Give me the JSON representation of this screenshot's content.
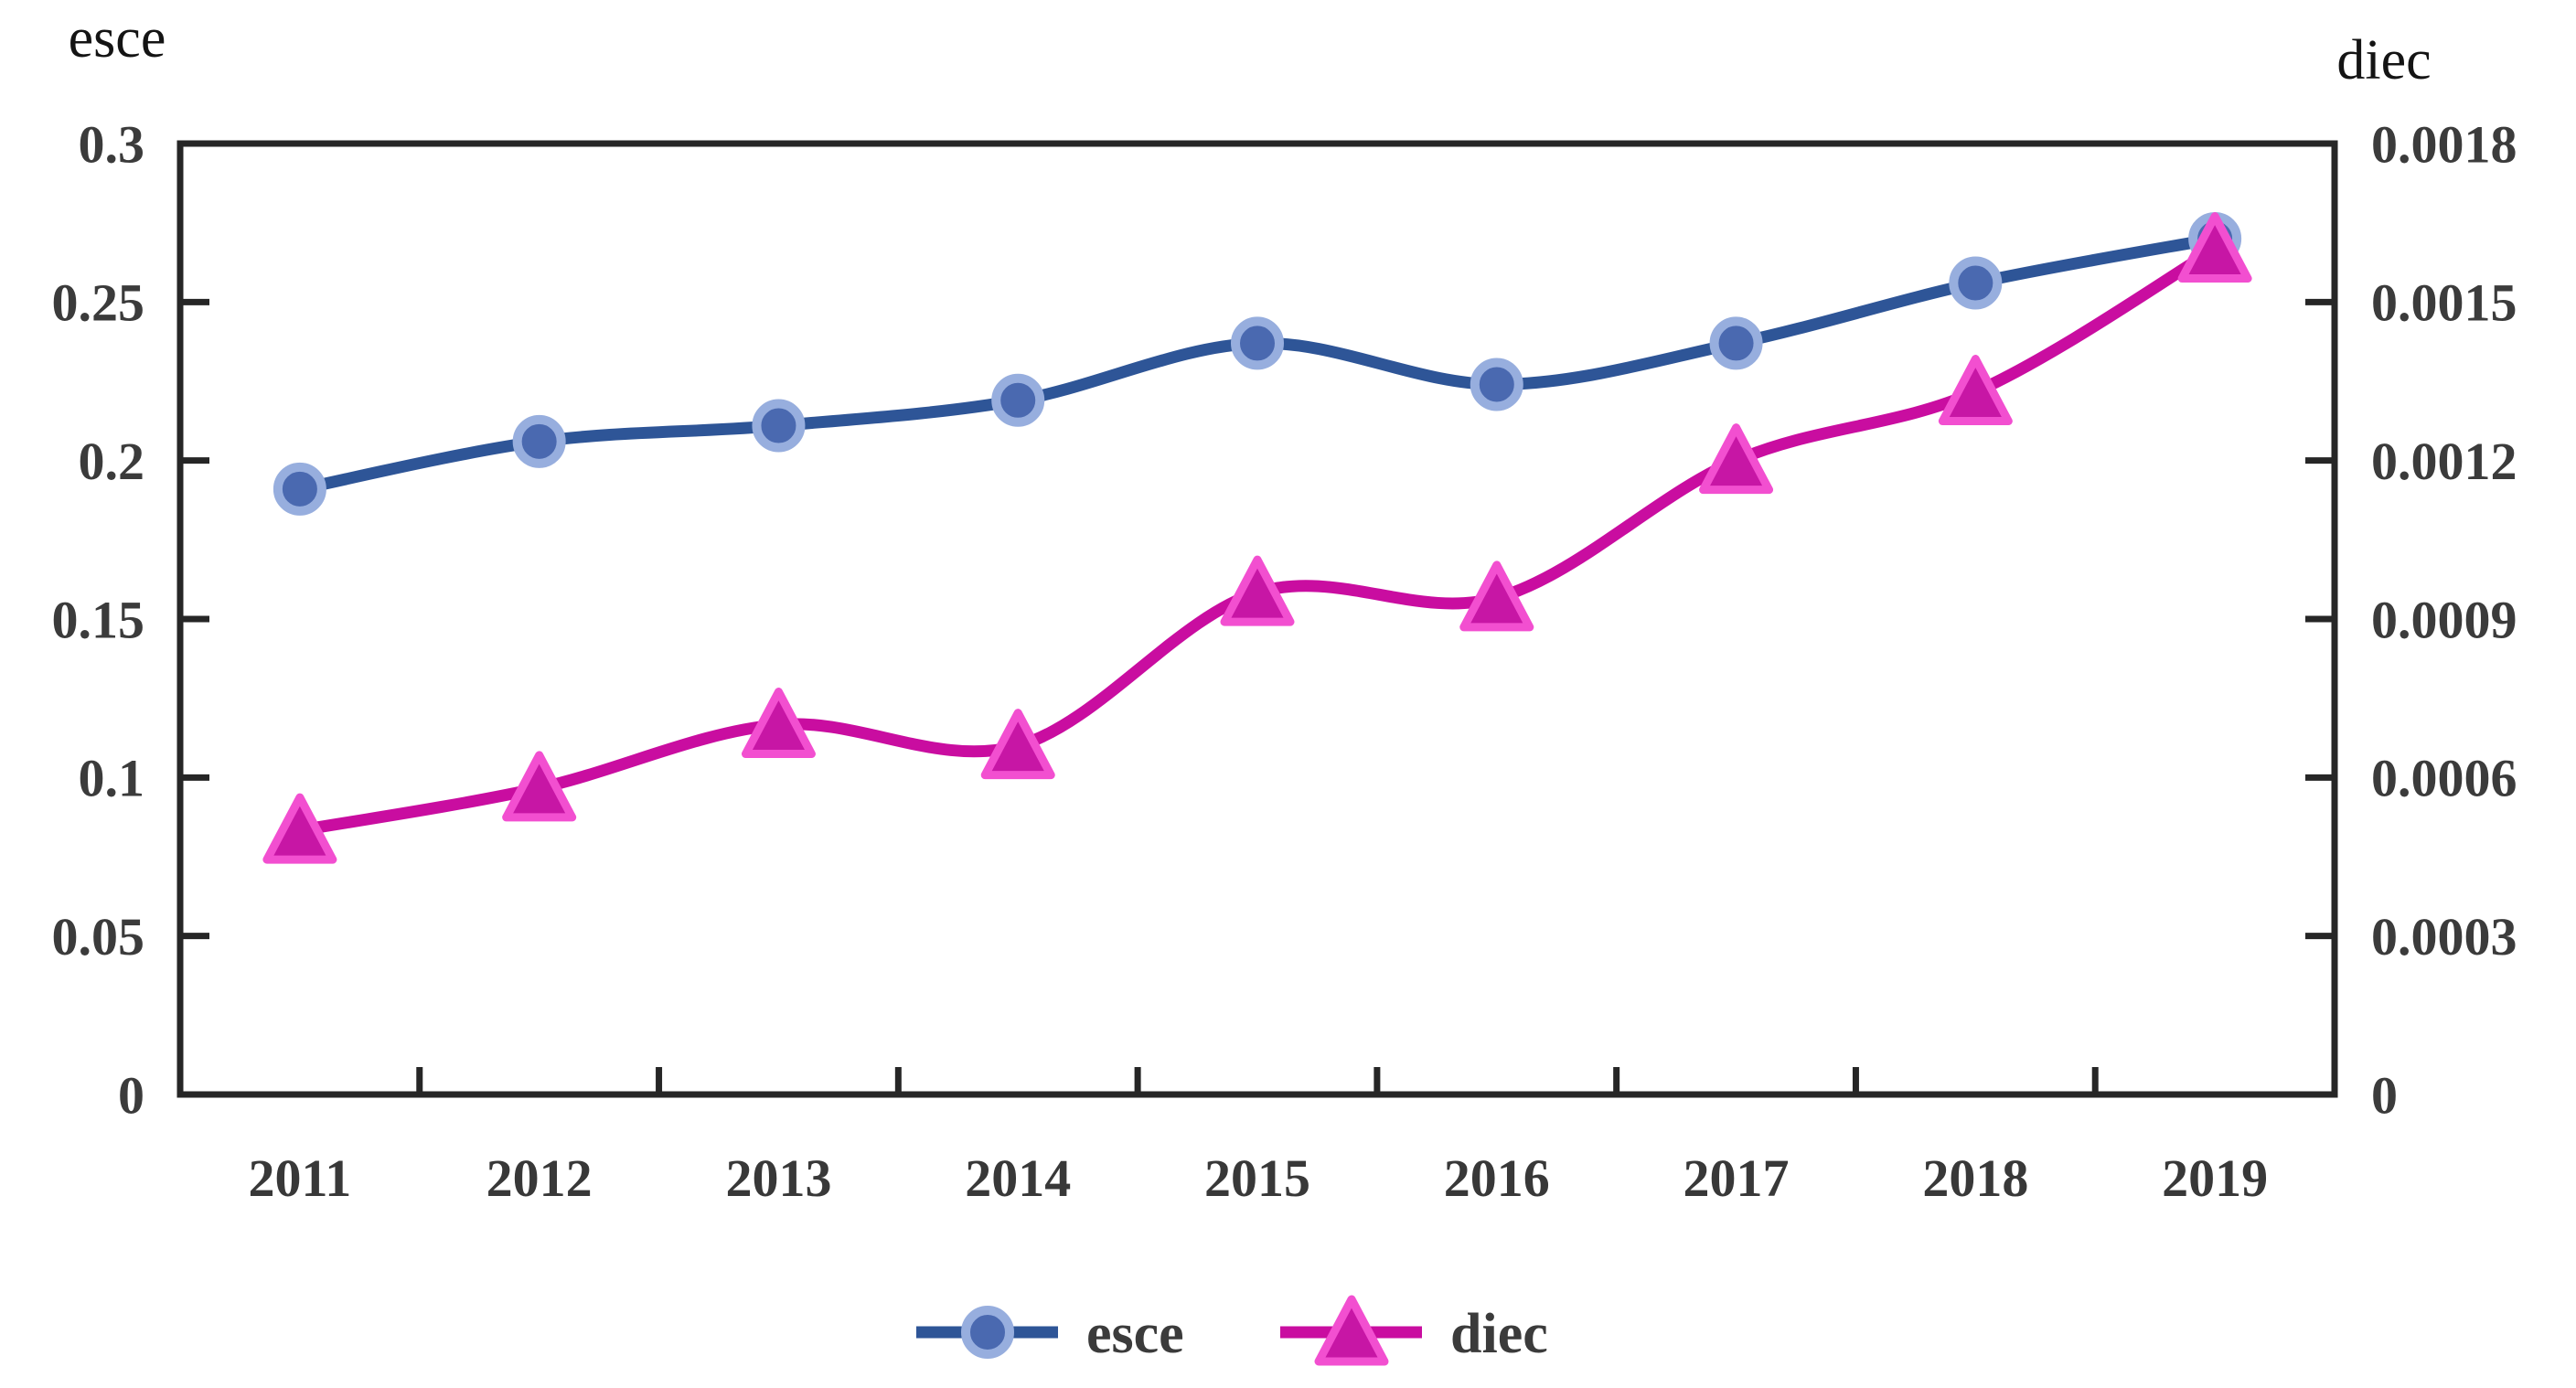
{
  "page": {
    "background": "#ffffff"
  },
  "left_axis_title": "esce",
  "right_axis_title": "diec",
  "chart_data": {
    "type": "line",
    "x_categories": [
      "2011",
      "2012",
      "2013",
      "2014",
      "2015",
      "2016",
      "2017",
      "2018",
      "2019"
    ],
    "series": [
      {
        "name": "esce",
        "axis": "left",
        "marker": "circle",
        "values": [
          0.191,
          0.206,
          0.211,
          0.219,
          0.237,
          0.224,
          0.237,
          0.256,
          0.27
        ],
        "line_color": "#2E5597",
        "marker_fill": "#4A69B0",
        "marker_edge": "#97AEDE"
      },
      {
        "name": "diec",
        "axis": "right",
        "marker": "triangle",
        "values": [
          0.0005,
          0.00058,
          0.0007,
          0.00066,
          0.00095,
          0.00094,
          0.0012,
          0.00133,
          0.0016
        ],
        "line_color": "#C90DA0",
        "marker_fill": "#C716A5",
        "marker_edge": "#F24FD0"
      }
    ],
    "left_axis": {
      "label": "esce",
      "min": 0,
      "max": 0.3,
      "step": 0.05,
      "tick_labels": [
        "0",
        "0.05",
        "0.1",
        "0.15",
        "0.2",
        "0.25",
        "0.3"
      ]
    },
    "right_axis": {
      "label": "diec",
      "min": 0,
      "max": 0.0018,
      "step": 0.0003,
      "tick_labels": [
        "0",
        "0.0003",
        "0.0006",
        "0.0009",
        "0.0012",
        "0.0015",
        "0.0018"
      ]
    },
    "grid": false,
    "legend": {
      "position": "bottom",
      "entries": [
        "esce",
        "diec"
      ]
    }
  },
  "colors": {
    "axis": "#262626",
    "tick_label": "#3B3B3B",
    "axis_title": "#141414",
    "legend_label": "#3B3B3B"
  }
}
